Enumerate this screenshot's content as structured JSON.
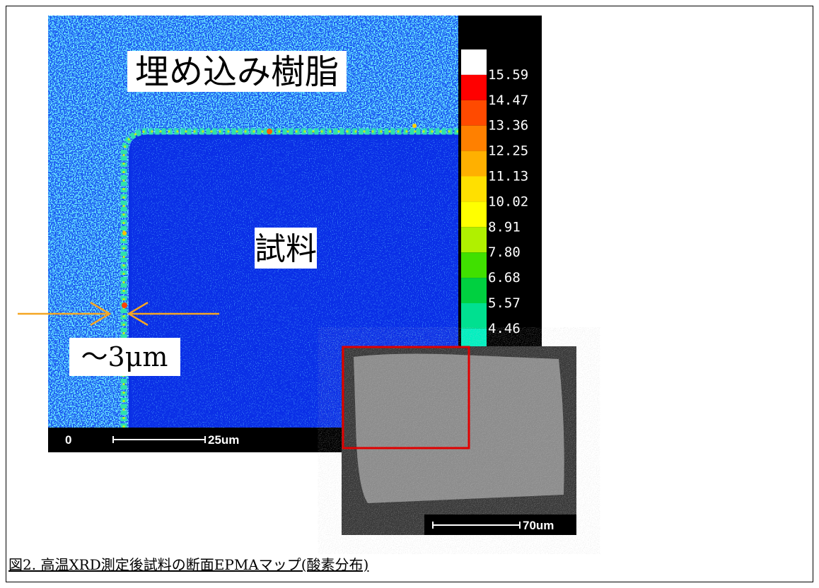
{
  "figure": {
    "labels": {
      "resin": "埋め込み樹脂",
      "sample": "試料",
      "thickness": "〜3μm"
    },
    "colorbar": [
      "15.59",
      "14.47",
      "13.36",
      "12.25",
      "11.13",
      "10.02",
      "8.91",
      "7.80",
      "6.68",
      "5.57",
      "4.46"
    ],
    "scale_main": {
      "zero": "0",
      "length": "25um"
    },
    "scale_inset": {
      "length": "70um"
    },
    "caption": "図2. 高温XRD測定後試料の断面EPMAマップ(酸素分布)"
  }
}
